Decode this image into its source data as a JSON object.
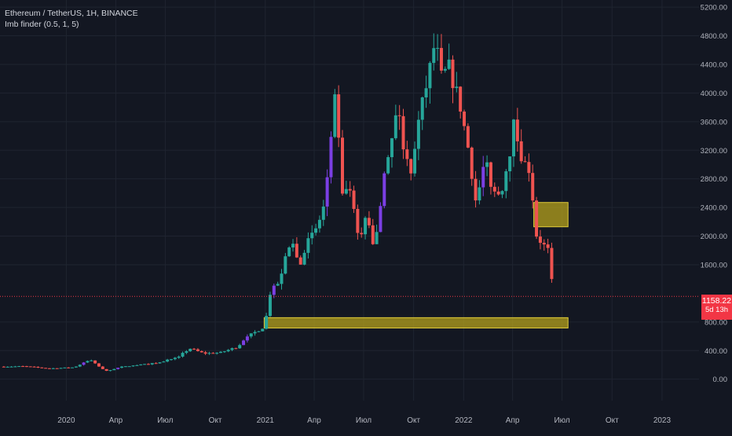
{
  "header": {
    "symbol_line": "Ethereum / TetherUS, 1H, BINANCE",
    "indicator_line": "Imb finder (0.5, 1, 5)"
  },
  "price_badge": {
    "price": "1158.22",
    "timer": "5d 13h"
  },
  "colors": {
    "background": "#131722",
    "up": "#26a69a",
    "down": "#ef5350",
    "imbalance_up": "#7b3fe4",
    "zone_fill": "#b5a21c",
    "zone_border": "#e0cc3a",
    "grid": "#1f2430",
    "axis_text": "#b2b5be",
    "last_price_line": "#f23645"
  },
  "chart_data": {
    "type": "candlestick",
    "title": "Ethereum / TetherUS, 1H, BINANCE",
    "indicator": "Imb finder (0.5, 1, 5)",
    "last_price": 1158.22,
    "ylim": [
      -300,
      5300
    ],
    "y_ticks": [
      {
        "value": 5200,
        "label": "5200.00"
      },
      {
        "value": 4800,
        "label": "4800.00"
      },
      {
        "value": 4400,
        "label": "4400.00"
      },
      {
        "value": 4000,
        "label": "4000.00"
      },
      {
        "value": 3600,
        "label": "3600.00"
      },
      {
        "value": 3200,
        "label": "3200.00"
      },
      {
        "value": 2800,
        "label": "2800.00"
      },
      {
        "value": 2400,
        "label": "2400.00"
      },
      {
        "value": 2000,
        "label": "2000.00"
      },
      {
        "value": 1600,
        "label": "1600.00"
      },
      {
        "value": 800,
        "label": "800.00"
      },
      {
        "value": 400,
        "label": "400.00"
      },
      {
        "value": 0,
        "label": "0.00"
      }
    ],
    "x_range": [
      "2019-09-01",
      "2023-03-10"
    ],
    "x_ticks": [
      {
        "date": "2020-01-01",
        "label": "2020"
      },
      {
        "date": "2020-04-01",
        "label": "Апр"
      },
      {
        "date": "2020-07-01",
        "label": "Июл"
      },
      {
        "date": "2020-10-01",
        "label": "Окт"
      },
      {
        "date": "2021-01-01",
        "label": "2021"
      },
      {
        "date": "2021-04-01",
        "label": "Апр"
      },
      {
        "date": "2021-07-01",
        "label": "Июл"
      },
      {
        "date": "2021-10-01",
        "label": "Окт"
      },
      {
        "date": "2022-01-01",
        "label": "2022"
      },
      {
        "date": "2022-04-01",
        "label": "Апр"
      },
      {
        "date": "2022-07-01",
        "label": "Июл"
      },
      {
        "date": "2022-10-01",
        "label": "Окт"
      },
      {
        "date": "2023-01-01",
        "label": "2023"
      }
    ],
    "price_path": [
      [
        "2019-09-01",
        175
      ],
      [
        "2019-10-15",
        180
      ],
      [
        "2019-12-01",
        150
      ],
      [
        "2020-01-15",
        165
      ],
      [
        "2020-02-14",
        270
      ],
      [
        "2020-03-13",
        110
      ],
      [
        "2020-04-10",
        170
      ],
      [
        "2020-05-15",
        200
      ],
      [
        "2020-06-20",
        230
      ],
      [
        "2020-07-28",
        330
      ],
      [
        "2020-08-15",
        430
      ],
      [
        "2020-09-10",
        360
      ],
      [
        "2020-10-10",
        370
      ],
      [
        "2020-11-10",
        450
      ],
      [
        "2020-12-01",
        600
      ],
      [
        "2020-12-31",
        740
      ],
      [
        "2021-01-10",
        1200
      ],
      [
        "2021-01-25",
        1350
      ],
      [
        "2021-02-10",
        1750
      ],
      [
        "2021-02-20",
        1950
      ],
      [
        "2021-03-05",
        1550
      ],
      [
        "2021-03-15",
        1850
      ],
      [
        "2021-04-05",
        2100
      ],
      [
        "2021-04-20",
        2450
      ],
      [
        "2021-05-05",
        3500
      ],
      [
        "2021-05-12",
        4150
      ],
      [
        "2021-05-20",
        2450
      ],
      [
        "2021-05-30",
        2700
      ],
      [
        "2021-06-10",
        2500
      ],
      [
        "2021-06-22",
        1900
      ],
      [
        "2021-07-05",
        2300
      ],
      [
        "2021-07-20",
        1800
      ],
      [
        "2021-08-05",
        2700
      ],
      [
        "2021-08-20",
        3250
      ],
      [
        "2021-09-03",
        3900
      ],
      [
        "2021-09-10",
        3250
      ],
      [
        "2021-09-25",
        2900
      ],
      [
        "2021-10-10",
        3600
      ],
      [
        "2021-10-30",
        4300
      ],
      [
        "2021-11-10",
        4750
      ],
      [
        "2021-11-20",
        4200
      ],
      [
        "2021-12-05",
        4350
      ],
      [
        "2021-12-25",
        3850
      ],
      [
        "2022-01-10",
        3200
      ],
      [
        "2022-01-24",
        2450
      ],
      [
        "2022-02-10",
        3100
      ],
      [
        "2022-02-24",
        2600
      ],
      [
        "2022-03-10",
        2600
      ],
      [
        "2022-03-25",
        3100
      ],
      [
        "2022-04-03",
        3550
      ],
      [
        "2022-04-20",
        3050
      ],
      [
        "2022-05-05",
        2900
      ],
      [
        "2022-05-12",
        2050
      ],
      [
        "2022-05-25",
        1900
      ],
      [
        "2022-06-05",
        1800
      ],
      [
        "2022-06-12",
        1400
      ],
      [
        "2022-06-18",
        1158
      ]
    ],
    "imbalance_zones": [
      {
        "x_start": "2022-05-10",
        "x_end": "2022-07-12",
        "y_low": 2130,
        "y_high": 2470
      },
      {
        "x_start": "2020-12-30",
        "x_end": "2022-07-12",
        "y_low": 715,
        "y_high": 860
      }
    ]
  }
}
